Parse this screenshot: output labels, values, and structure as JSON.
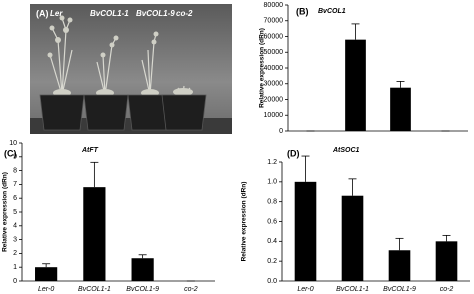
{
  "photo": {
    "label": "(A)",
    "plant_labels": [
      "Ler",
      "BvCOL1-1",
      "BvCOL1-9",
      "co-2"
    ]
  },
  "chart_data": [
    {
      "type": "bar",
      "label": "(B)",
      "title": "BvCOL1",
      "ylabel": "Relative expression (dRn)",
      "color": "#000000",
      "categories": [
        null,
        null,
        null,
        null
      ],
      "values": [
        0,
        58000,
        27500,
        0
      ],
      "errors": [
        0,
        10000,
        4000,
        0
      ],
      "ylim": [
        0,
        80000
      ],
      "yticks": [
        0,
        10000,
        20000,
        30000,
        40000,
        50000,
        60000,
        70000,
        80000
      ]
    },
    {
      "type": "bar",
      "label": "(C)",
      "title": "AtFT",
      "ylabel": "Relative expression (dRn)",
      "color": "#000000",
      "categories": [
        "Ler-0",
        "BvCOL1-1",
        "BvCOL1-9",
        "co-2"
      ],
      "values": [
        1.0,
        6.8,
        1.65,
        0
      ],
      "errors": [
        0.25,
        1.8,
        0.25,
        0
      ],
      "ylim": [
        0,
        10
      ],
      "yticks": [
        0,
        1,
        2,
        3,
        4,
        5,
        6,
        7,
        8,
        9,
        10
      ]
    },
    {
      "type": "bar",
      "label": "(D)",
      "title": "AtSOC1",
      "ylabel": "Relative expression (dRn)",
      "color": "#000000",
      "categories": [
        "Ler-0",
        "BvCOL1-1",
        "BvCOL1-9",
        "co-2"
      ],
      "values": [
        1.0,
        0.86,
        0.31,
        0.4
      ],
      "errors": [
        0.26,
        0.17,
        0.12,
        0.06
      ],
      "ylim": [
        0,
        1.2
      ],
      "yticks": [
        {
          "value": 0,
          "label": "0.0"
        },
        0.2,
        0.4,
        0.6,
        0.8,
        {
          "value": 1,
          "label": "1.0"
        },
        1.2
      ]
    }
  ]
}
